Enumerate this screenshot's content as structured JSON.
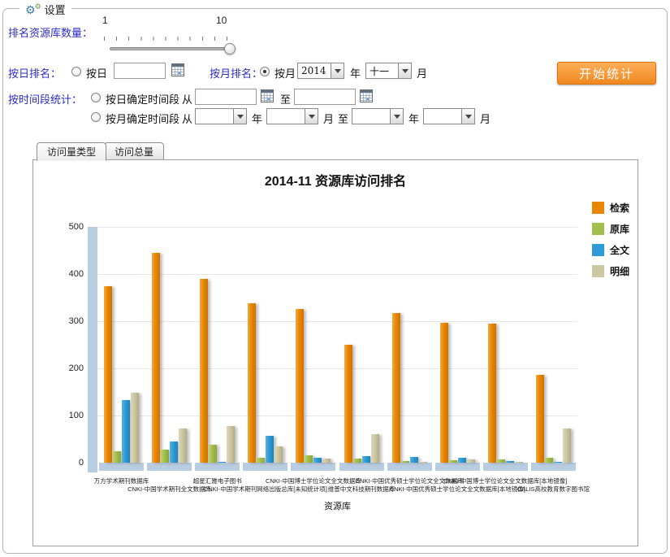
{
  "settings": {
    "legend": "设置",
    "slider": {
      "label": "排名资源库数量：",
      "min_label": "1",
      "max_label": "10",
      "value": 10
    },
    "daily_rank": {
      "label": "按日排名：",
      "radio_label": "按日",
      "input_value": ""
    },
    "monthly_rank": {
      "label": "按月排名：",
      "radio_label": "按月",
      "year_value": "2014",
      "year_suffix": "年",
      "month_value": "十一",
      "month_suffix": "月"
    },
    "period": {
      "label": "按时间段统计：",
      "daily": {
        "radio_label": "按日确定时间段",
        "from_label": "从",
        "to_label": "至"
      },
      "monthly": {
        "radio_label": "按月确定时间段",
        "from_label": "从",
        "to_label": "至",
        "year_suffix": "年",
        "month_suffix": "月",
        "year_suffix2": "年",
        "month_suffix2": "月"
      }
    },
    "start_button": "开始统计"
  },
  "tabs": [
    {
      "label": "访问量类型",
      "active": true
    },
    {
      "label": "访问总量",
      "active": false
    }
  ],
  "chart_data": {
    "type": "bar",
    "title": "2014-11 资源库访问排名",
    "xlabel": "资源库",
    "ylim": [
      0,
      500
    ],
    "yticks": [
      0,
      100,
      200,
      300,
      400,
      500
    ],
    "grid": true,
    "legend_position": "right",
    "axis_band_color": "#b9cde2",
    "grid_color": "#e6e6e6",
    "categories": [
      "万方学术期刊数据库",
      "CNKI-中国学术期刊全文数据库",
      "超星汇雅电子图书",
      "CNKI-中国学术期刊网络出版总库[未知统计项]",
      "CNKI-中国博士学位论文全文数据库",
      "维普中文科技期刊数据库",
      "CNKI-中国优秀硕士学位论文全文数据库",
      "CNKI-中国优秀硕士学位论文全文数据库[本地镜像]",
      "CNKI-中国博士学位论文全文数据库[本地镜像]",
      "CALIS高校教育数字图书馆"
    ],
    "series": [
      {
        "name": "检索",
        "color": "#e88600",
        "gradient": [
          "#f7a63f",
          "#e88600",
          "#cf7300"
        ],
        "values": [
          375,
          445,
          390,
          338,
          326,
          250,
          317,
          297,
          295,
          186
        ]
      },
      {
        "name": "原库",
        "color": "#a3be4c",
        "gradient": [
          "#bcd36a",
          "#a3be4c",
          "#8aa53a"
        ],
        "values": [
          24,
          28,
          38,
          11,
          15,
          8,
          4,
          6,
          7,
          10
        ]
      },
      {
        "name": "全文",
        "color": "#2e9bd6",
        "gradient": [
          "#56b1e2",
          "#2e9bd6",
          "#1f83ba"
        ],
        "values": [
          132,
          44,
          2,
          57,
          10,
          14,
          12,
          10,
          4,
          1
        ]
      },
      {
        "name": "明细",
        "color": "#cdc7a2",
        "gradient": [
          "#dcd7b8",
          "#cdc7a2",
          "#b3ac85"
        ],
        "values": [
          149,
          72,
          78,
          34,
          8,
          60,
          2,
          7,
          2,
          72
        ]
      }
    ]
  }
}
